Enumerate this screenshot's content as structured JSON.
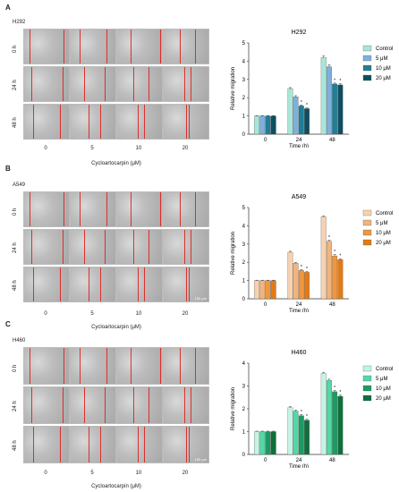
{
  "panels": [
    {
      "letter": "A",
      "cell_line": "H292",
      "row_labels": [
        "0 h",
        "24 h",
        "48 h"
      ],
      "concentrations": [
        "0",
        "5",
        "10",
        "20"
      ],
      "axis_title": "Cycloartocarpin (μM)",
      "scale_label": ""
    },
    {
      "letter": "B",
      "cell_line": "A549",
      "row_labels": [
        "0 h",
        "24 h",
        "48 h"
      ],
      "concentrations": [
        "0",
        "5",
        "10",
        "20"
      ],
      "axis_title": "Cycloartocarpin (μM)",
      "scale_label": "100 μm"
    },
    {
      "letter": "C",
      "cell_line": "H460",
      "row_labels": [
        "0 h",
        "24 h",
        "48 h"
      ],
      "concentrations": [
        "0",
        "5",
        "10",
        "20"
      ],
      "axis_title": "Cycloartocarpin (μM)",
      "scale_label": "100 μm"
    }
  ],
  "chart_data": [
    {
      "type": "bar",
      "title": "H292",
      "xlabel": "Time (h)",
      "ylabel": "Relative migration",
      "categories": [
        "0",
        "24",
        "48"
      ],
      "ylim": [
        0,
        5
      ],
      "yticks": [
        0,
        1,
        2,
        3,
        4,
        5
      ],
      "legend_position": "top-right",
      "series": [
        {
          "name": "Control",
          "color": "#a8e6d8",
          "values": [
            1.0,
            2.5,
            4.2
          ],
          "errors": [
            0.02,
            0.05,
            0.08
          ],
          "sig": [
            false,
            false,
            false
          ]
        },
        {
          "name": "5 μM",
          "color": "#7fb0dc",
          "values": [
            1.0,
            2.05,
            3.7
          ],
          "errors": [
            0.02,
            0.06,
            0.1
          ],
          "sig": [
            false,
            false,
            false
          ]
        },
        {
          "name": "10 μM",
          "color": "#1f7f97",
          "values": [
            1.0,
            1.55,
            2.75
          ],
          "errors": [
            0.02,
            0.05,
            0.05
          ],
          "sig": [
            false,
            true,
            true
          ]
        },
        {
          "name": "20 μM",
          "color": "#0d4f60",
          "values": [
            1.0,
            1.4,
            2.7
          ],
          "errors": [
            0.02,
            0.04,
            0.06
          ],
          "sig": [
            false,
            true,
            true
          ]
        }
      ]
    },
    {
      "type": "bar",
      "title": "A549",
      "xlabel": "Time (h)",
      "ylabel": "Relative migration",
      "categories": [
        "0",
        "24",
        "48"
      ],
      "ylim": [
        0,
        5
      ],
      "yticks": [
        0,
        1,
        2,
        3,
        4,
        5
      ],
      "legend_position": "top-right",
      "series": [
        {
          "name": "Control",
          "color": "#f6d2b0",
          "values": [
            1.0,
            2.55,
            4.5
          ],
          "errors": [
            0.02,
            0.05,
            0.05
          ],
          "sig": [
            false,
            false,
            false
          ]
        },
        {
          "name": "5 μM",
          "color": "#f2b47c",
          "values": [
            1.0,
            1.95,
            3.15
          ],
          "errors": [
            0.02,
            0.04,
            0.06
          ],
          "sig": [
            false,
            false,
            true
          ]
        },
        {
          "name": "10 μM",
          "color": "#f0963f",
          "values": [
            1.0,
            1.55,
            2.35
          ],
          "errors": [
            0.02,
            0.05,
            0.07
          ],
          "sig": [
            false,
            true,
            true
          ]
        },
        {
          "name": "20 μM",
          "color": "#e27b15",
          "values": [
            1.0,
            1.45,
            2.15
          ],
          "errors": [
            0.02,
            0.04,
            0.05
          ],
          "sig": [
            false,
            true,
            true
          ]
        }
      ]
    },
    {
      "type": "bar",
      "title": "H460",
      "xlabel": "Time (h)",
      "ylabel": "Relative migration",
      "categories": [
        "0",
        "24",
        "48"
      ],
      "ylim": [
        0,
        4
      ],
      "yticks": [
        0,
        1,
        2,
        3,
        4
      ],
      "legend_position": "top-right",
      "series": [
        {
          "name": "Control",
          "color": "#c6f3e4",
          "values": [
            1.0,
            2.05,
            3.55
          ],
          "errors": [
            0.02,
            0.04,
            0.05
          ],
          "sig": [
            false,
            false,
            false
          ]
        },
        {
          "name": "5 μM",
          "color": "#53d8a5",
          "values": [
            1.0,
            1.9,
            3.25
          ],
          "errors": [
            0.02,
            0.04,
            0.05
          ],
          "sig": [
            false,
            false,
            false
          ]
        },
        {
          "name": "10 μM",
          "color": "#1d9a64",
          "values": [
            1.0,
            1.7,
            2.75
          ],
          "errors": [
            0.02,
            0.05,
            0.05
          ],
          "sig": [
            false,
            true,
            true
          ]
        },
        {
          "name": "20 μM",
          "color": "#0f6f3b",
          "values": [
            1.0,
            1.5,
            2.55
          ],
          "errors": [
            0.02,
            0.04,
            0.05
          ],
          "sig": [
            false,
            true,
            true
          ]
        }
      ]
    }
  ]
}
